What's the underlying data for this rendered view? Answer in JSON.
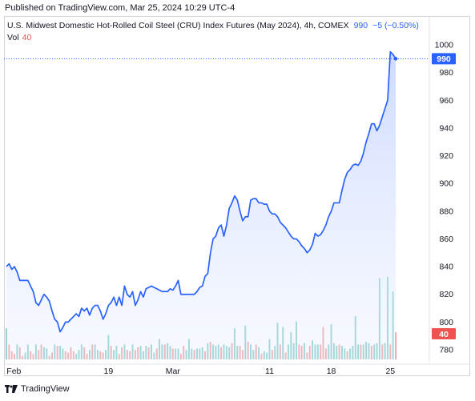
{
  "header": {
    "published": "Published on TradingView.com, Mar 25, 2024 10:29 UTC-4"
  },
  "legend": {
    "title": "U.S. Midwest Domestic Hot-Rolled Coil Steel (CRU) Index Futures (May 2024), 4h, COMEX",
    "value": "990",
    "change": "−5 (−0.50%)",
    "vol_label": "Vol",
    "vol_value": "40"
  },
  "footer": {
    "brand": "TradingView"
  },
  "colors": {
    "line": "#2962ff",
    "area_top": "#d6e0ff",
    "vol_up": "#80cbc4",
    "vol_down": "#ef9a9a",
    "badge_price": "#2962ff",
    "badge_vol": "#ef5350"
  },
  "chart_data": {
    "type": "area",
    "y_ticks": [
      "1000",
      "980",
      "960",
      "940",
      "920",
      "900",
      "880",
      "860",
      "840",
      "820",
      "800",
      "780"
    ],
    "x_ticks": [
      "Feb",
      "19",
      "Mar",
      "11",
      "18",
      "25"
    ],
    "ylim": [
      775,
      1003
    ],
    "last_price": "990",
    "last_volume": "40",
    "series": [
      {
        "values": [
          840,
          842,
          838,
          840,
          836,
          830,
          830,
          830,
          830,
          826,
          822,
          814,
          812,
          816,
          820,
          818,
          815,
          808,
          802,
          800,
          793,
          796,
          800,
          800,
          802,
          804,
          806,
          804,
          810,
          808,
          810,
          805,
          810,
          812,
          812,
          808,
          802,
          806,
          812,
          814,
          818,
          812,
          818,
          812,
          826,
          820,
          818,
          822,
          812,
          816,
          822,
          818,
          824,
          825,
          826,
          825,
          824,
          823,
          822,
          822,
          822,
          824,
          823,
          826,
          830,
          820,
          820,
          820,
          820,
          820,
          820,
          822,
          825,
          826,
          833,
          835,
          850,
          860,
          862,
          868,
          870,
          862,
          870,
          882,
          886,
          891,
          888,
          880,
          873,
          876,
          876,
          888,
          889,
          889,
          886,
          886,
          885,
          885,
          880,
          878,
          878,
          876,
          872,
          870,
          868,
          865,
          862,
          860,
          860,
          858,
          855,
          853,
          850,
          852,
          856,
          864,
          862,
          863,
          866,
          870,
          876,
          880,
          886,
          886,
          886,
          895,
          903,
          908,
          910,
          913,
          914,
          913,
          916,
          922,
          930,
          936,
          943,
          943,
          938,
          942,
          948,
          954,
          960,
          995,
          993,
          990
        ]
      }
    ],
    "volume": {
      "values": [
        46,
        22,
        12,
        8,
        22,
        18,
        5,
        10,
        22,
        12,
        8,
        22,
        14,
        22,
        18,
        16,
        5,
        10,
        22,
        20,
        20,
        16,
        12,
        10,
        18,
        12,
        8,
        14,
        22,
        18,
        8,
        14,
        22,
        22,
        14,
        12,
        10,
        14,
        36,
        20,
        14,
        20,
        8,
        18,
        22,
        14,
        12,
        22,
        14,
        18,
        20,
        12,
        20,
        18,
        22,
        10,
        16,
        30,
        22,
        22,
        24,
        20,
        16,
        16,
        16,
        8,
        20,
        14,
        30,
        16,
        14,
        16,
        16,
        18,
        12,
        24,
        26,
        22,
        20,
        22,
        18,
        22,
        20,
        18,
        24,
        46,
        20,
        20,
        14,
        50,
        26,
        22,
        14,
        22,
        18,
        8,
        12,
        10,
        30,
        14,
        20,
        54,
        22,
        48,
        10,
        22,
        40,
        24,
        56,
        22,
        20,
        24,
        10,
        20,
        28,
        22,
        22,
        22,
        48,
        16,
        22,
        52,
        24,
        20,
        22,
        20,
        16,
        12,
        16,
        20,
        64,
        22,
        22,
        22,
        26,
        24,
        20,
        22,
        24,
        120,
        22,
        24,
        122,
        22,
        100,
        40
      ],
      "up": [
        1,
        0,
        0,
        0,
        1,
        0,
        0,
        1,
        1,
        0,
        0,
        1,
        0,
        0,
        1,
        1,
        0,
        0,
        1,
        0,
        1,
        1,
        0,
        0,
        0,
        0,
        1,
        1,
        1,
        0,
        0,
        1,
        0,
        1,
        1,
        0,
        0,
        1,
        1,
        0,
        1,
        1,
        0,
        0,
        1,
        0,
        0,
        1,
        0,
        0,
        1,
        1,
        1,
        0,
        1,
        1,
        0,
        1,
        1,
        0,
        1,
        1,
        0,
        1,
        1,
        0,
        0,
        1,
        1,
        1,
        0,
        1,
        1,
        1,
        0,
        1,
        0,
        1,
        1,
        1,
        0,
        1,
        1,
        1,
        0,
        1,
        1,
        0,
        0,
        1,
        0,
        1,
        1,
        0,
        1,
        0,
        1,
        1,
        1,
        0,
        1,
        1,
        0,
        1,
        0,
        1,
        1,
        1,
        1,
        0,
        0,
        1,
        0,
        0,
        1,
        1,
        1,
        0,
        0,
        0,
        1,
        1,
        1,
        1,
        0,
        1,
        1,
        0,
        1,
        1,
        1,
        1,
        0,
        1,
        1,
        1,
        0,
        1,
        1,
        1,
        0,
        1,
        1,
        0,
        1,
        0
      ]
    }
  }
}
